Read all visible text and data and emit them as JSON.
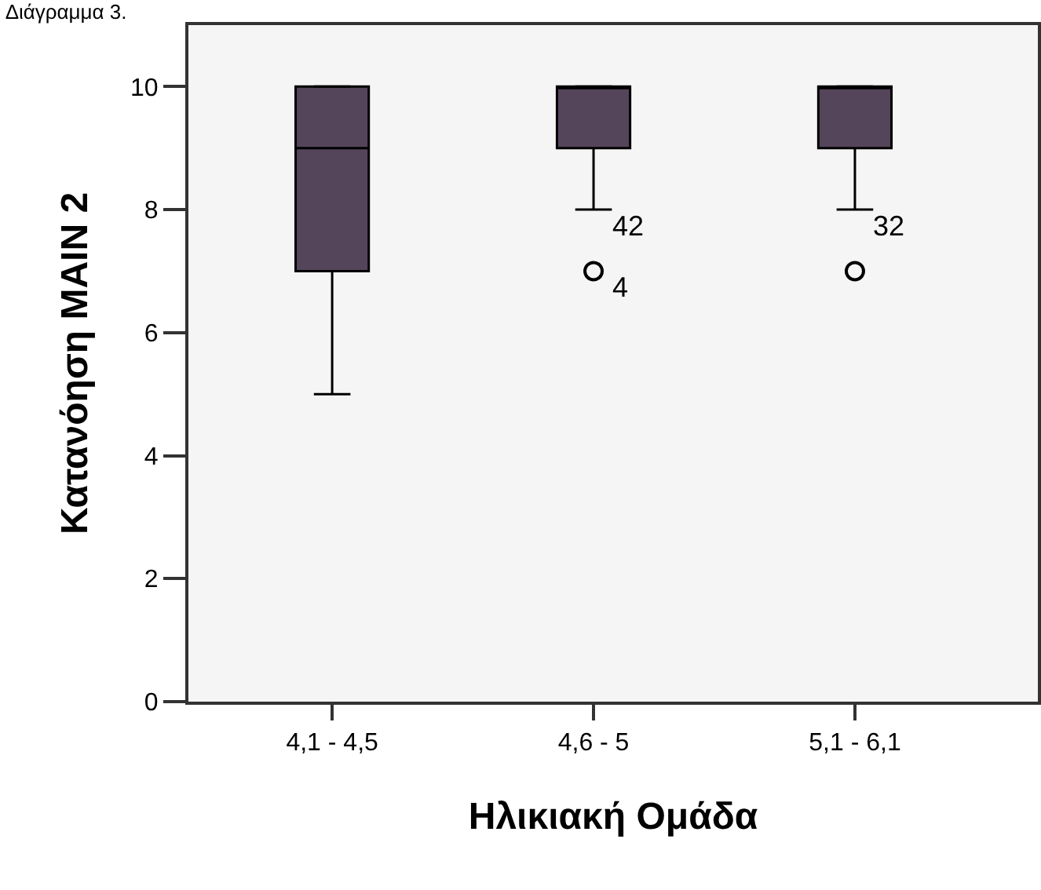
{
  "chart_data": {
    "type": "box",
    "title": "Διάγραμμα 3.",
    "xlabel": "Ηλικιακή Ομάδα",
    "ylabel": "Κατανόηση MAIN 2",
    "categories": [
      "4,1 - 4,5",
      "4,6 - 5",
      "5,1 - 6,1"
    ],
    "boxes": [
      {
        "low": 5,
        "q1": 7,
        "median": 9,
        "q3": 10,
        "high": 10
      },
      {
        "low": 8,
        "q1": 9,
        "median": 10,
        "q3": 10,
        "high": 10
      },
      {
        "low": 8,
        "q1": 9,
        "median": 10,
        "q3": 10,
        "high": 10
      }
    ],
    "series": [
      {
        "type": "scatter",
        "x": [
          "4,6 - 5",
          "5,1 - 6,1"
        ],
        "values": [
          7,
          7
        ],
        "color": "#000000",
        "marker": "circle"
      }
    ],
    "color": "#54455a",
    "ylim": [
      0,
      11
    ],
    "yticks": [
      0,
      2,
      4,
      6,
      8,
      10
    ],
    "grid": false,
    "annotations": [
      {
        "text": "42",
        "x": "4,6 - 5",
        "y": 8
      },
      {
        "text": "4",
        "x": "4,6 - 5",
        "y": 7
      },
      {
        "text": "32",
        "x": "5,1 - 6,1",
        "y": 8
      }
    ]
  }
}
